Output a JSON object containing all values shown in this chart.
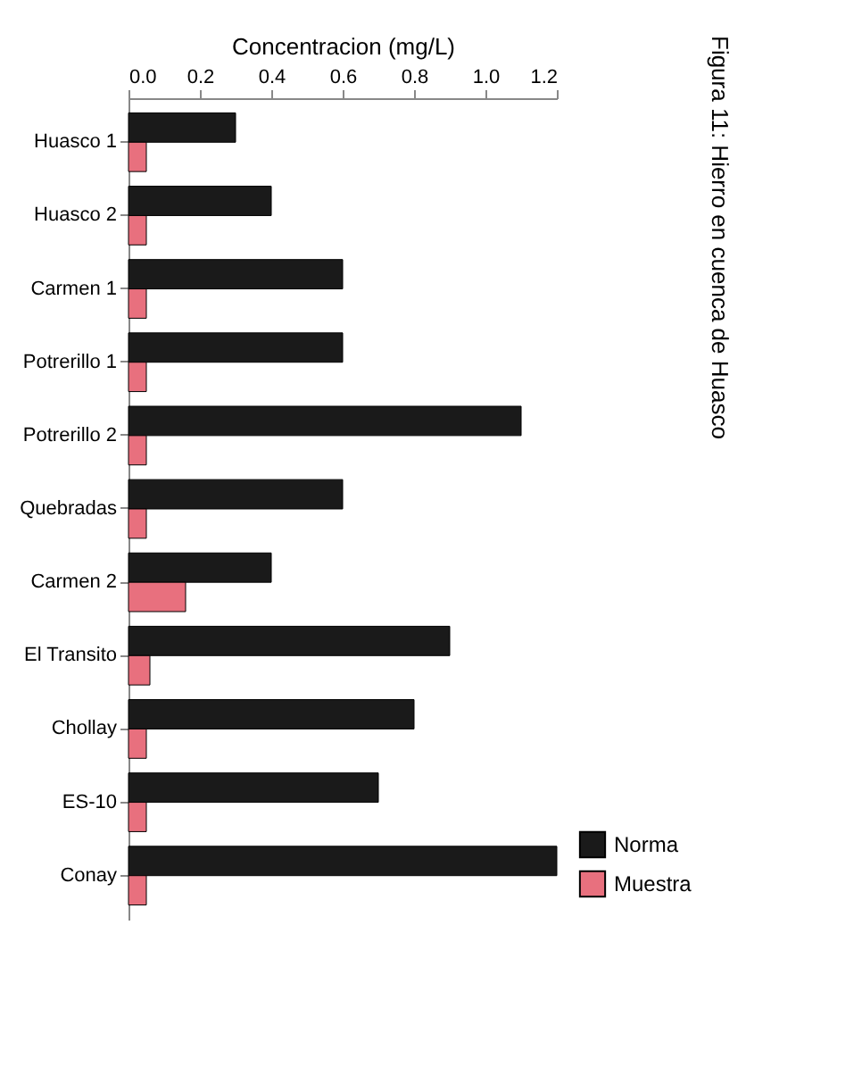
{
  "chart_data": {
    "type": "bar",
    "orientation": "horizontal",
    "title": "Figura 11: Hierro en cuenca de Huasco",
    "xlabel": "Concentracion (mg/L)",
    "categories": [
      "Huasco 1",
      "Huasco 2",
      "Carmen 1",
      "Potrerillo 1",
      "Potrerillo 2",
      "Quebradas",
      "Carmen 2",
      "El Transito",
      "Chollay",
      "ES-10",
      "Conay"
    ],
    "series": [
      {
        "name": "Norma",
        "color": "#1a1a1a",
        "values": [
          0.3,
          0.4,
          0.6,
          0.6,
          1.1,
          0.6,
          0.4,
          0.9,
          0.8,
          0.7,
          1.2
        ]
      },
      {
        "name": "Muestra",
        "color": "#e8707e",
        "values": [
          0.05,
          0.05,
          0.05,
          0.05,
          0.05,
          0.05,
          0.16,
          0.06,
          0.05,
          0.05,
          0.05
        ]
      }
    ],
    "xlim": [
      0,
      1.2
    ],
    "xticks": [
      {
        "value": 0,
        "label": "0.0"
      },
      0.2,
      0.4,
      0.6,
      0.8,
      {
        "value": 1,
        "label": "1.0"
      },
      1.2
    ],
    "legend": "bottom right",
    "grid": false
  }
}
